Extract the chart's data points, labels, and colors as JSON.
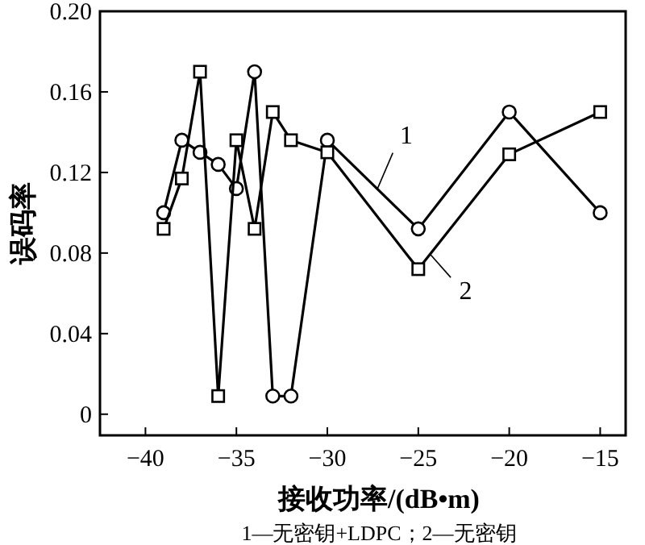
{
  "chart_data": {
    "type": "line",
    "xlabel": "接收功率/(dB•m)",
    "ylabel": "误码率",
    "annotations": [
      "1—无密钥+LDPC；2—无密钥"
    ],
    "xlim": [
      -42.5,
      -13.6
    ],
    "xticks": [
      -40,
      -35,
      -30,
      -25,
      -20,
      -15
    ],
    "ylim": [
      -0.0105,
      0.2
    ],
    "yticks": [
      0,
      0.04,
      0.08,
      0.12,
      0.16,
      {
        "value": 0.2,
        "label": "0.20"
      }
    ],
    "legend": "right",
    "grid": false,
    "series": [
      {
        "name": "1",
        "color": "#000000",
        "marker": "circle",
        "x": [
          -39,
          -38,
          -37,
          -36,
          -35,
          -34,
          -33,
          -32,
          -30,
          -25,
          -20,
          -15
        ],
        "values": [
          0.1,
          0.136,
          0.13,
          0.124,
          0.112,
          0.17,
          0.009,
          0.009,
          0.136,
          0.092,
          0.15,
          0.1
        ]
      },
      {
        "name": "2",
        "color": "#000000",
        "marker": "square",
        "x": [
          -39,
          -38,
          -37,
          -36,
          -35,
          -34,
          -33,
          -32,
          -30,
          -25,
          -20,
          -15
        ],
        "values": [
          0.092,
          0.117,
          0.17,
          0.009,
          0.136,
          0.092,
          0.15,
          0.136,
          0.13,
          0.072,
          0.129,
          0.15
        ]
      }
    ]
  }
}
